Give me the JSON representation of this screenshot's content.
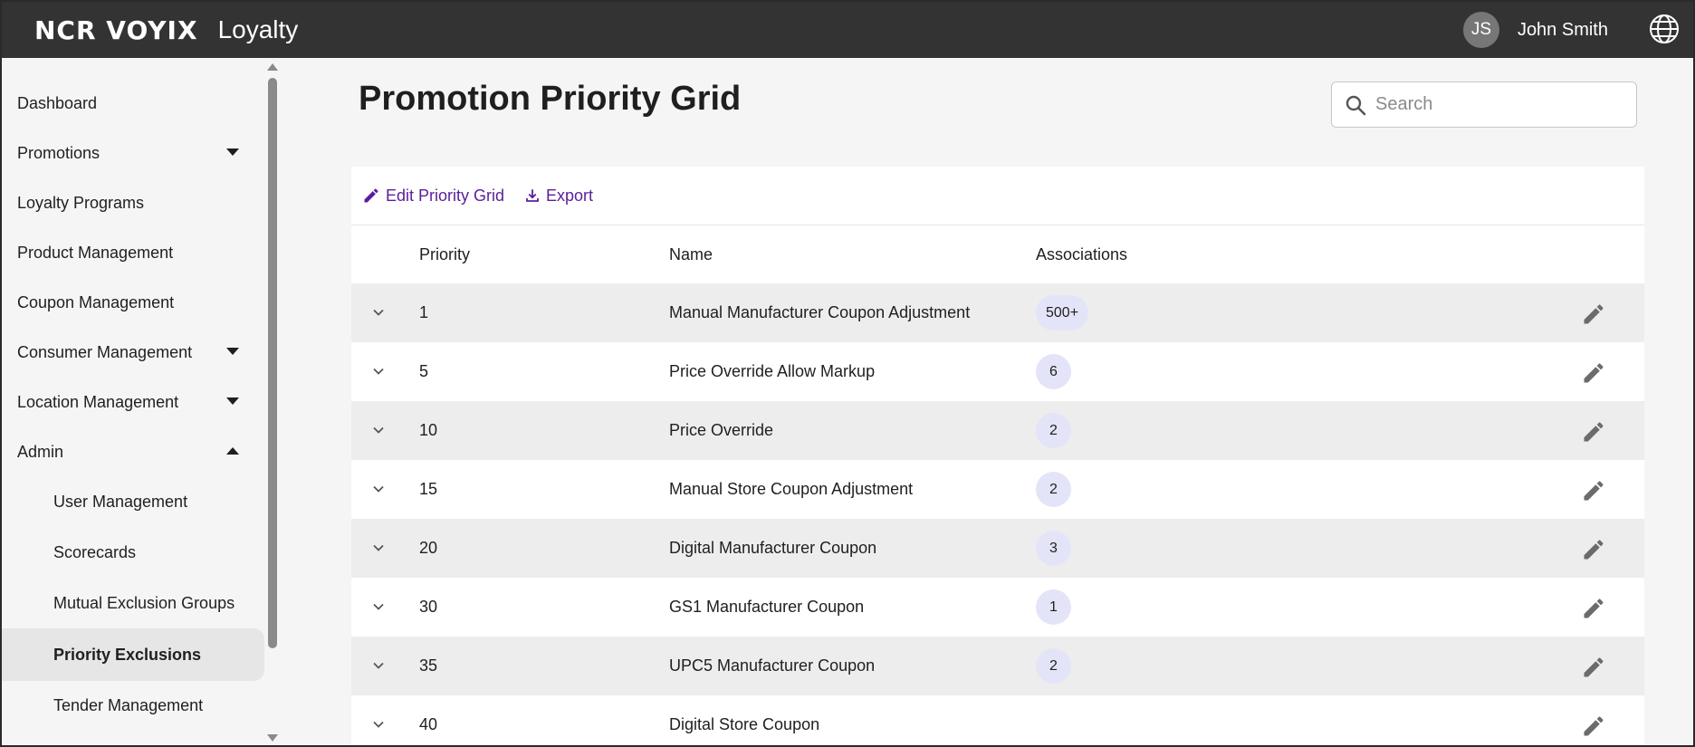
{
  "header": {
    "brand_logo": "NCR VOYIX",
    "product": "Loyalty",
    "user_initials": "JS",
    "user_name": "John Smith"
  },
  "sidebar": {
    "items": [
      {
        "label": "Dashboard"
      },
      {
        "label": "Promotions"
      },
      {
        "label": "Loyalty Programs"
      },
      {
        "label": "Product Management"
      },
      {
        "label": "Coupon Management"
      },
      {
        "label": "Consumer Management"
      },
      {
        "label": "Location Management"
      },
      {
        "label": "Admin"
      },
      {
        "label": "User Management"
      },
      {
        "label": "Scorecards"
      },
      {
        "label": "Mutual Exclusion Groups"
      },
      {
        "label": "Priority Exclusions"
      },
      {
        "label": "Tender Management"
      }
    ]
  },
  "main": {
    "title": "Promotion Priority Grid",
    "search_placeholder": "Search",
    "toolbar": {
      "edit_label": "Edit Priority Grid",
      "export_label": "Export"
    },
    "table": {
      "columns": [
        "Priority",
        "Name",
        "Associations"
      ],
      "rows": [
        {
          "priority": "1",
          "name": "Manual Manufacturer Coupon Adjustment",
          "associations": "500+"
        },
        {
          "priority": "5",
          "name": "Price Override Allow Markup",
          "associations": "6"
        },
        {
          "priority": "10",
          "name": "Price Override",
          "associations": "2"
        },
        {
          "priority": "15",
          "name": "Manual Store Coupon Adjustment",
          "associations": "2"
        },
        {
          "priority": "20",
          "name": "Digital Manufacturer Coupon",
          "associations": "3"
        },
        {
          "priority": "30",
          "name": "GS1 Manufacturer Coupon",
          "associations": "1"
        },
        {
          "priority": "35",
          "name": "UPC5 Manufacturer Coupon",
          "associations": "2"
        },
        {
          "priority": "40",
          "name": "Digital Store Coupon",
          "associations": null
        }
      ]
    }
  },
  "colors": {
    "topbar": "#333333",
    "accent": "#5b1e9a",
    "pill": "#e4e4f9",
    "row_alt": "#ededed"
  }
}
